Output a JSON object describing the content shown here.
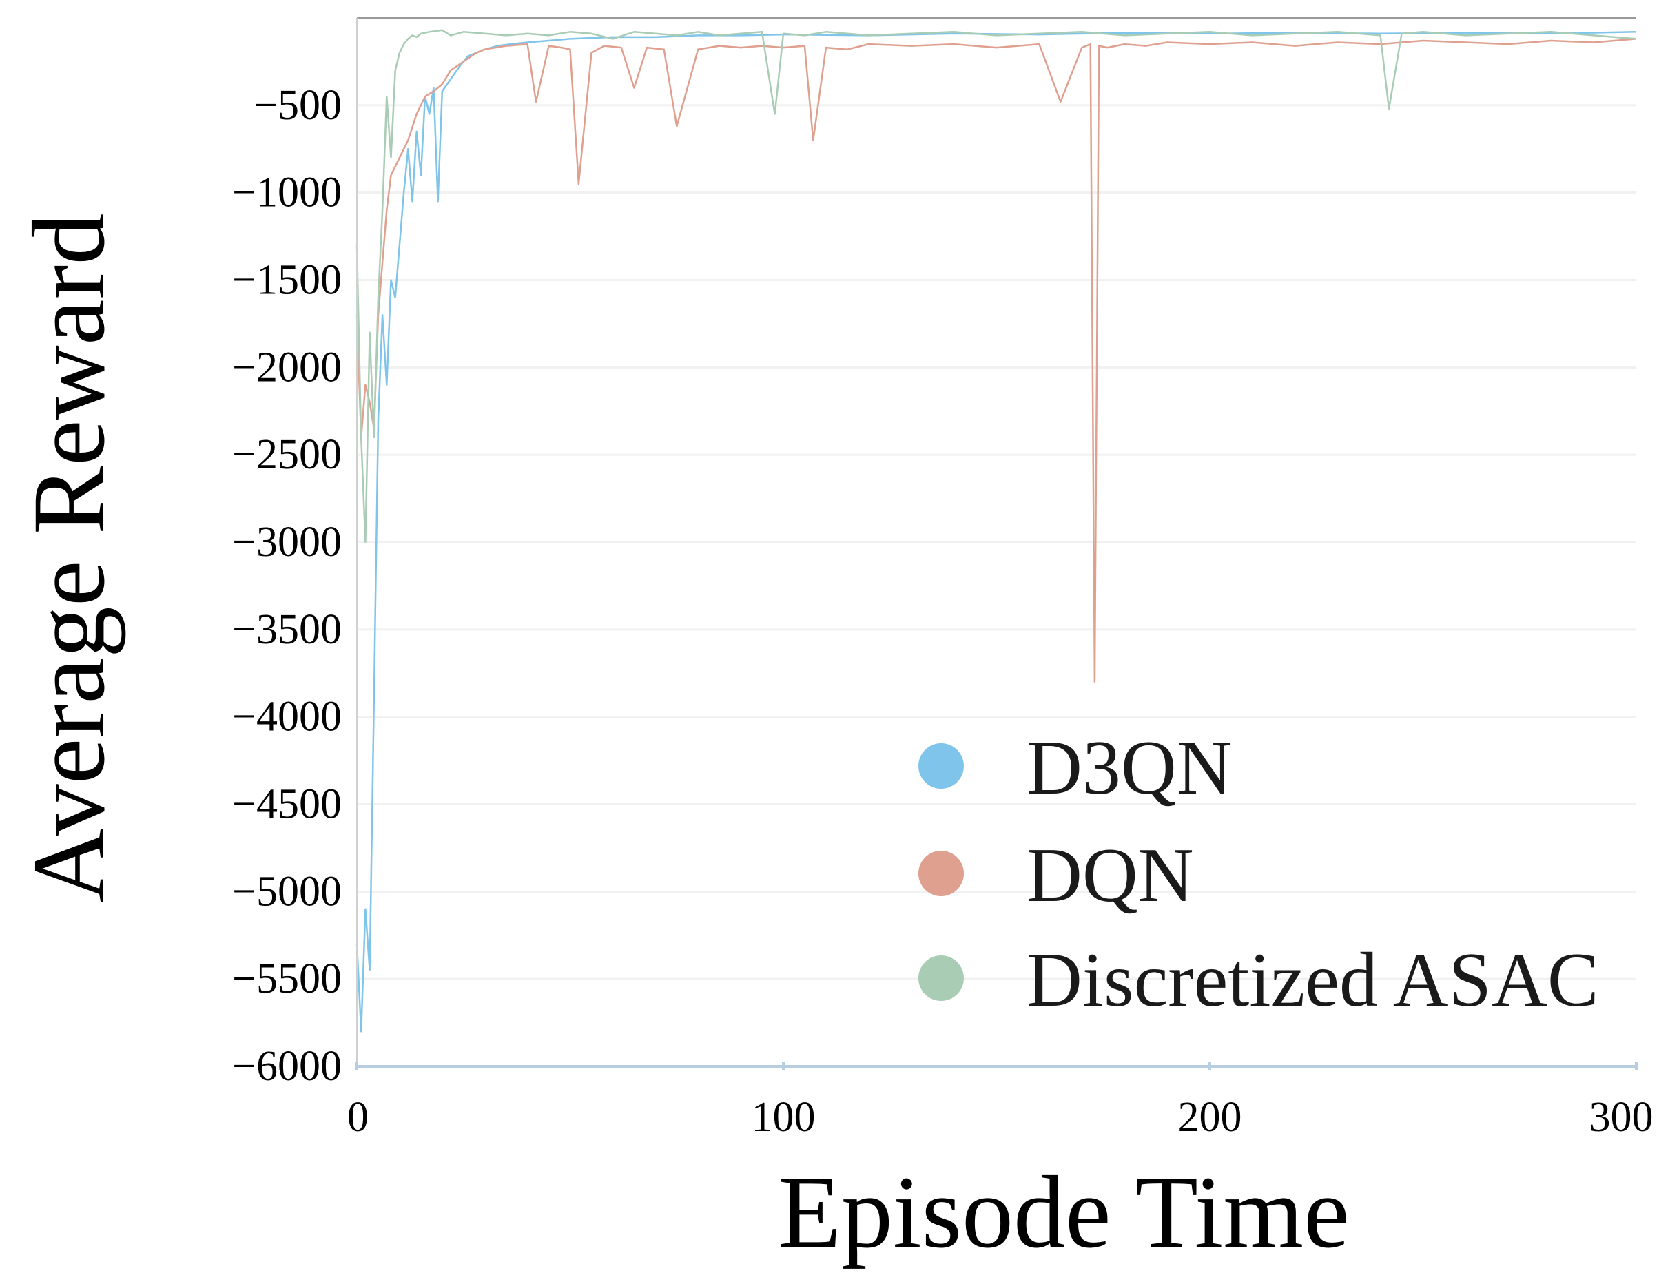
{
  "chart_data": {
    "type": "line",
    "title": "",
    "xlabel": "Episode Time",
    "ylabel": "Average Reward",
    "xlim": [
      0,
      300
    ],
    "ylim": [
      -6000,
      0
    ],
    "xticks": [
      0,
      100,
      200,
      300
    ],
    "xtick_labels": [
      "0",
      "100",
      "200",
      "300"
    ],
    "yticks": [
      -500,
      -1000,
      -1500,
      -2000,
      -2500,
      -3000,
      -3500,
      -4000,
      -4500,
      -5000,
      -5500,
      -6000
    ],
    "ytick_labels": [
      "−500",
      "−1000",
      "−1500",
      "−2000",
      "−2500",
      "−3000",
      "−3500",
      "−4000",
      "−4500",
      "−5000",
      "−5500",
      "−6000"
    ],
    "grid": true,
    "legend_position": "bottom-right",
    "colors": {
      "D3QN": "#7fc4ea",
      "DQN": "#dfa08f",
      "Discretized ASAC": "#a9ccb5",
      "grid": "#f1f1f1",
      "axis": "#b9cde0"
    },
    "series": [
      {
        "name": "D3QN",
        "x": [
          0,
          1,
          2,
          3,
          4,
          5,
          6,
          7,
          8,
          9,
          10,
          11,
          12,
          13,
          14,
          15,
          16,
          17,
          18,
          19,
          20,
          22,
          24,
          26,
          28,
          30,
          33,
          36,
          40,
          45,
          50,
          60,
          70,
          80,
          90,
          100,
          120,
          140,
          160,
          180,
          200,
          220,
          240,
          260,
          280,
          300
        ],
        "y": [
          -5300,
          -5800,
          -5100,
          -5450,
          -3900,
          -2300,
          -1700,
          -2100,
          -1500,
          -1600,
          -1300,
          -1000,
          -750,
          -1050,
          -650,
          -900,
          -450,
          -550,
          -400,
          -1050,
          -420,
          -350,
          -280,
          -220,
          -200,
          -180,
          -160,
          -150,
          -140,
          -130,
          -120,
          -110,
          -110,
          -100,
          -100,
          -95,
          -100,
          -90,
          -95,
          -85,
          -90,
          -85,
          -90,
          -85,
          -90,
          -80
        ]
      },
      {
        "name": "DQN",
        "x": [
          0,
          1,
          2,
          3,
          4,
          5,
          6,
          7,
          8,
          9,
          10,
          12,
          14,
          16,
          18,
          20,
          22,
          25,
          28,
          30,
          35,
          40,
          42,
          45,
          48,
          50,
          52,
          55,
          58,
          62,
          65,
          68,
          72,
          75,
          80,
          85,
          90,
          95,
          100,
          105,
          107,
          110,
          115,
          120,
          130,
          140,
          150,
          160,
          165,
          170,
          172,
          173,
          174,
          176,
          180,
          185,
          190,
          200,
          210,
          220,
          230,
          240,
          250,
          260,
          270,
          280,
          290,
          300
        ],
        "y": [
          -1700,
          -2400,
          -2100,
          -2200,
          -2350,
          -1700,
          -1400,
          -1100,
          -900,
          -850,
          -800,
          -700,
          -550,
          -450,
          -420,
          -380,
          -300,
          -250,
          -200,
          -180,
          -160,
          -150,
          -480,
          -160,
          -170,
          -180,
          -950,
          -200,
          -160,
          -170,
          -400,
          -170,
          -180,
          -620,
          -180,
          -160,
          -170,
          -160,
          -170,
          -160,
          -700,
          -170,
          -180,
          -150,
          -160,
          -150,
          -170,
          -150,
          -480,
          -170,
          -150,
          -3800,
          -160,
          -170,
          -150,
          -160,
          -140,
          -150,
          -140,
          -160,
          -140,
          -150,
          -130,
          -140,
          -150,
          -130,
          -140,
          -120
        ]
      },
      {
        "name": "Discretized ASAC",
        "x": [
          0,
          1,
          2,
          3,
          4,
          5,
          6,
          7,
          8,
          9,
          10,
          11,
          12,
          13,
          14,
          15,
          17,
          20,
          22,
          25,
          30,
          35,
          40,
          45,
          50,
          55,
          60,
          65,
          70,
          75,
          80,
          85,
          90,
          95,
          98,
          100,
          105,
          110,
          115,
          120,
          130,
          140,
          150,
          160,
          170,
          180,
          190,
          200,
          210,
          220,
          230,
          240,
          242,
          245,
          250,
          260,
          270,
          280,
          290,
          300
        ],
        "y": [
          -1300,
          -2400,
          -3000,
          -1800,
          -2400,
          -1600,
          -1100,
          -450,
          -800,
          -300,
          -200,
          -150,
          -120,
          -100,
          -110,
          -90,
          -80,
          -70,
          -100,
          -80,
          -90,
          -100,
          -90,
          -100,
          -80,
          -90,
          -120,
          -80,
          -90,
          -100,
          -80,
          -100,
          -90,
          -80,
          -550,
          -90,
          -100,
          -80,
          -90,
          -100,
          -90,
          -80,
          -100,
          -90,
          -80,
          -100,
          -90,
          -80,
          -100,
          -90,
          -80,
          -100,
          -520,
          -90,
          -80,
          -100,
          -90,
          -80,
          -100,
          -120
        ]
      }
    ]
  }
}
